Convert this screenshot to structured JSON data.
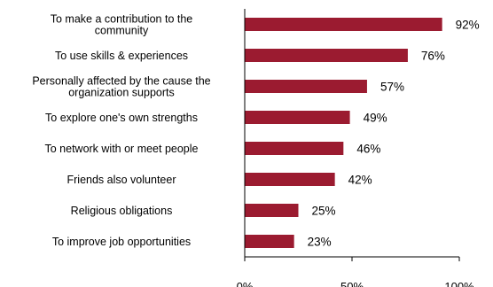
{
  "chart_data": {
    "type": "bar",
    "orientation": "horizontal",
    "categories": [
      "To make a contribution to the community",
      "To use skills & experiences",
      "Personally affected by the cause the organization supports",
      "To explore one's own strengths",
      "To network with or meet people",
      "Friends also volunteer",
      "Religious obligations",
      "To improve job opportunities"
    ],
    "category_lines": [
      [
        "To make a contribution to the",
        "community"
      ],
      [
        "To use skills & experiences"
      ],
      [
        "Personally affected by the cause the",
        "organization supports"
      ],
      [
        "To explore one's own strengths"
      ],
      [
        "To network with or meet people"
      ],
      [
        "Friends also volunteer"
      ],
      [
        "Religious obligations"
      ],
      [
        "To improve job opportunities"
      ]
    ],
    "values": [
      92,
      76,
      57,
      49,
      46,
      42,
      25,
      23
    ],
    "data_labels": [
      "92%",
      "76%",
      "57%",
      "49%",
      "46%",
      "42%",
      "25%",
      "23%"
    ],
    "xlim": [
      0,
      100
    ],
    "xticks": [
      0,
      50,
      100
    ],
    "xtick_labels": [
      "0%",
      "50%",
      "100%"
    ],
    "bar_color": "#9b1b30",
    "grid": false,
    "legend": "none"
  }
}
